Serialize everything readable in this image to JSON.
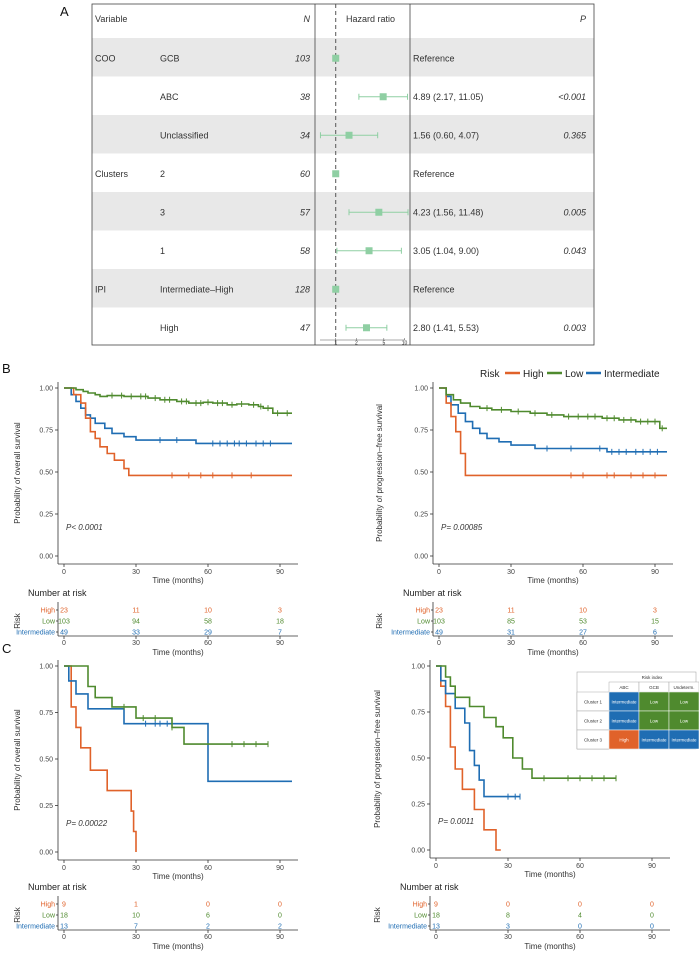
{
  "panel_labels": {
    "a": "A",
    "b": "B",
    "c": "C"
  },
  "colors": {
    "high": "#e0622a",
    "low": "#4f8a2e",
    "intermediate": "#1f6db3",
    "forest_marker": "#8fcfa3",
    "stripe": "#e8e8e8",
    "axis": "#333333"
  },
  "forest": {
    "headers": {
      "variable": "Variable",
      "n": "N",
      "hr": "Hazard ratio",
      "p": "P"
    },
    "x_ticks": [
      "1",
      "2",
      "5",
      "10"
    ]
  },
  "km": {
    "y_ticks": [
      "0.00",
      "0.25",
      "0.50",
      "0.75",
      "1.00"
    ],
    "x_ticks": [
      "0",
      "30",
      "60",
      "90"
    ],
    "xlabel": "Time (months)",
    "ylabel_os": "Probability of overall survival",
    "ylabel_pfs": "Probability of progression–free survival",
    "legend_title": "Risk",
    "legend_high": "High",
    "legend_low": "Low",
    "legend_intermediate": "Intermediate",
    "nar_title": "Number at risk",
    "nar_ylabel": "Risk",
    "group_high": "High",
    "group_low": "Low",
    "group_intermediate": "Intermediate"
  },
  "risk_table": {
    "title": "Risk index",
    "cols": [
      "ABC",
      "GCB",
      "Undeterm."
    ],
    "rows": [
      {
        "label": "Cluster 1",
        "cells": [
          "Intermediate",
          "Low",
          "Low"
        ]
      },
      {
        "label": "Cluster 2",
        "cells": [
          "Intermediate",
          "Low",
          "Low"
        ]
      },
      {
        "label": "Cluster 3",
        "cells": [
          "High",
          "Intermediate",
          "Intermediate"
        ]
      }
    ]
  },
  "chart_data": [
    {
      "type": "forest",
      "id": "A",
      "title": "",
      "x_scale": "log",
      "xlim": [
        0.5,
        12
      ],
      "reference_line": 1,
      "xlabel": "",
      "rows": [
        {
          "group": "COO",
          "variable": "GCB",
          "n": "103",
          "hr": 1,
          "lo": null,
          "hi": null,
          "hr_text": "Reference",
          "p": ""
        },
        {
          "group": "",
          "variable": "ABC",
          "n": "38",
          "hr": 4.89,
          "lo": 2.17,
          "hi": 11.05,
          "hr_text": "4.89 (2.17, 11.05)",
          "p": "<0.001"
        },
        {
          "group": "",
          "variable": "Unclassified",
          "n": "34",
          "hr": 1.56,
          "lo": 0.6,
          "hi": 4.07,
          "hr_text": "1.56 (0.60, 4.07)",
          "p": "0.365"
        },
        {
          "group": "Clusters",
          "variable": "2",
          "n": "60",
          "hr": 1,
          "lo": null,
          "hi": null,
          "hr_text": "Reference",
          "p": ""
        },
        {
          "group": "",
          "variable": "3",
          "n": "57",
          "hr": 4.23,
          "lo": 1.56,
          "hi": 11.48,
          "hr_text": "4.23 (1.56, 11.48)",
          "p": "0.005"
        },
        {
          "group": "",
          "variable": "1",
          "n": "58",
          "hr": 3.05,
          "lo": 1.04,
          "hi": 9.0,
          "hr_text": "3.05 (1.04, 9.00)",
          "p": "0.043"
        },
        {
          "group": "IPI",
          "variable": "Intermediate–High",
          "n": "128",
          "hr": 1,
          "lo": null,
          "hi": null,
          "hr_text": "Reference",
          "p": ""
        },
        {
          "group": "",
          "variable": "High",
          "n": "47",
          "hr": 2.8,
          "lo": 1.41,
          "hi": 5.53,
          "hr_text": "2.80 (1.41, 5.53)",
          "p": "0.003"
        }
      ]
    },
    {
      "type": "line",
      "id": "B-OS",
      "step": true,
      "xlim": [
        0,
        95
      ],
      "ylim": [
        0,
        1
      ],
      "pvalue_text": "P< 0.0001",
      "series": [
        {
          "name": "Intermediate",
          "color_key": "intermediate",
          "x": [
            0,
            3,
            5,
            7,
            9,
            11,
            13,
            17,
            20,
            25,
            30,
            35,
            45,
            55,
            60,
            65,
            75,
            85,
            95
          ],
          "y": [
            1,
            0.96,
            0.92,
            0.88,
            0.84,
            0.82,
            0.79,
            0.76,
            0.73,
            0.71,
            0.69,
            0.69,
            0.69,
            0.67,
            0.67,
            0.67,
            0.67,
            0.67,
            0.67
          ],
          "censor_x": [
            40,
            47,
            62,
            65,
            68,
            71,
            73,
            76,
            80,
            83,
            86
          ]
        },
        {
          "name": "High",
          "color_key": "high",
          "x": [
            0,
            4,
            7,
            9,
            11,
            13,
            15,
            18,
            21,
            25,
            27,
            95
          ],
          "y": [
            1,
            0.96,
            0.91,
            0.82,
            0.74,
            0.7,
            0.65,
            0.61,
            0.57,
            0.52,
            0.48,
            0.48
          ],
          "censor_x": [
            45,
            52,
            57,
            62,
            70,
            78
          ]
        },
        {
          "name": "Low",
          "color_key": "low",
          "x": [
            0,
            5,
            8,
            10,
            13,
            15,
            18,
            25,
            35,
            40,
            47,
            52,
            58,
            62,
            68,
            72,
            77,
            81,
            83,
            87,
            91,
            95
          ],
          "y": [
            1,
            0.99,
            0.98,
            0.97,
            0.96,
            0.95,
            0.955,
            0.95,
            0.94,
            0.93,
            0.92,
            0.91,
            0.915,
            0.91,
            0.9,
            0.905,
            0.9,
            0.89,
            0.88,
            0.85,
            0.85,
            0.85
          ],
          "censor_x": [
            20,
            24,
            28,
            32,
            34,
            38,
            42,
            44,
            49,
            51,
            55,
            57,
            60,
            64,
            66,
            70,
            74,
            79,
            82,
            85,
            89,
            93
          ]
        }
      ],
      "nar": {
        "x": [
          0,
          30,
          60,
          90
        ],
        "high": [
          "23",
          "11",
          "10",
          "3"
        ],
        "low": [
          "103",
          "94",
          "58",
          "18"
        ],
        "intermediate": [
          "49",
          "33",
          "29",
          "7"
        ]
      }
    },
    {
      "type": "line",
      "id": "B-PFS",
      "step": true,
      "xlim": [
        0,
        95
      ],
      "ylim": [
        0,
        1
      ],
      "pvalue_text": "P= 0.00085",
      "series": [
        {
          "name": "Intermediate",
          "color_key": "intermediate",
          "x": [
            0,
            3,
            5,
            8,
            11,
            14,
            17,
            20,
            25,
            30,
            35,
            40,
            50,
            60,
            70,
            95
          ],
          "y": [
            1,
            0.95,
            0.9,
            0.85,
            0.8,
            0.76,
            0.73,
            0.7,
            0.68,
            0.66,
            0.66,
            0.64,
            0.64,
            0.64,
            0.62,
            0.62
          ],
          "censor_x": [
            45,
            55,
            67,
            72,
            75,
            78,
            82,
            85,
            88,
            91
          ]
        },
        {
          "name": "High",
          "color_key": "high",
          "x": [
            0,
            3,
            5,
            7,
            9,
            11,
            95
          ],
          "y": [
            1,
            0.91,
            0.83,
            0.74,
            0.61,
            0.48,
            0.48
          ],
          "censor_x": [
            55,
            60,
            70,
            73,
            80,
            85,
            90
          ]
        },
        {
          "name": "Low",
          "color_key": "low",
          "x": [
            0,
            3,
            6,
            9,
            13,
            17,
            22,
            30,
            38,
            45,
            52,
            60,
            68,
            75,
            82,
            88,
            92,
            95
          ],
          "y": [
            1,
            0.96,
            0.93,
            0.91,
            0.89,
            0.88,
            0.87,
            0.86,
            0.85,
            0.84,
            0.83,
            0.83,
            0.82,
            0.81,
            0.8,
            0.8,
            0.76,
            0.76
          ],
          "censor_x": [
            20,
            26,
            33,
            40,
            47,
            54,
            58,
            62,
            65,
            70,
            73,
            77,
            80,
            84,
            87,
            90,
            93
          ]
        }
      ],
      "nar": {
        "x": [
          0,
          30,
          60,
          90
        ],
        "high": [
          "23",
          "11",
          "10",
          "3"
        ],
        "low": [
          "103",
          "85",
          "53",
          "15"
        ],
        "intermediate": [
          "49",
          "31",
          "27",
          "6"
        ]
      }
    },
    {
      "type": "line",
      "id": "C-OS",
      "step": true,
      "xlim": [
        0,
        95
      ],
      "ylim": [
        0,
        1
      ],
      "pvalue_text": "P= 0.00022",
      "series": [
        {
          "name": "High",
          "color_key": "high",
          "x": [
            0,
            3,
            5,
            7,
            11,
            18,
            26,
            28,
            29,
            30
          ],
          "y": [
            1,
            0.78,
            0.67,
            0.56,
            0.44,
            0.33,
            0.33,
            0.22,
            0.11,
            0
          ],
          "censor_x": []
        },
        {
          "name": "Intermediate",
          "color_key": "intermediate",
          "x": [
            0,
            2,
            5,
            10,
            14,
            25,
            60,
            95
          ],
          "y": [
            1,
            0.92,
            0.85,
            0.77,
            0.77,
            0.69,
            0.38,
            0.38
          ],
          "censor_x": [
            34,
            38,
            40,
            43
          ]
        },
        {
          "name": "Low",
          "color_key": "low",
          "x": [
            0,
            5,
            10,
            13,
            15,
            20,
            30,
            45,
            50,
            85
          ],
          "y": [
            1,
            1,
            0.89,
            0.83,
            0.83,
            0.78,
            0.72,
            0.67,
            0.58,
            0.58
          ],
          "censor_x": [
            25,
            33,
            38,
            45,
            70,
            75,
            80,
            85
          ]
        }
      ],
      "nar": {
        "x": [
          0,
          30,
          60,
          90
        ],
        "high": [
          "9",
          "1",
          "0",
          "0"
        ],
        "low": [
          "18",
          "10",
          "6",
          "0"
        ],
        "intermediate": [
          "13",
          "7",
          "2",
          "2"
        ]
      }
    },
    {
      "type": "line",
      "id": "C-PFS",
      "step": true,
      "xlim": [
        0,
        95
      ],
      "ylim": [
        0,
        1
      ],
      "pvalue_text": "P= 0.0011",
      "series": [
        {
          "name": "High",
          "color_key": "high",
          "x": [
            0,
            2,
            4,
            6,
            8,
            11,
            16,
            20,
            25,
            27
          ],
          "y": [
            1,
            0.89,
            0.78,
            0.56,
            0.44,
            0.33,
            0.22,
            0.11,
            0,
            0
          ],
          "censor_x": []
        },
        {
          "name": "Intermediate",
          "color_key": "intermediate",
          "x": [
            0,
            2,
            4,
            8,
            12,
            14,
            16,
            18,
            20,
            35
          ],
          "y": [
            1,
            0.92,
            0.85,
            0.77,
            0.69,
            0.54,
            0.46,
            0.38,
            0.29,
            0.29
          ],
          "censor_x": [
            30,
            33,
            35
          ]
        },
        {
          "name": "Low",
          "color_key": "low",
          "x": [
            0,
            4,
            6,
            8,
            14,
            20,
            25,
            28,
            32,
            36,
            40,
            75
          ],
          "y": [
            1,
            0.94,
            0.89,
            0.83,
            0.78,
            0.72,
            0.67,
            0.61,
            0.5,
            0.44,
            0.39,
            0.39
          ],
          "censor_x": [
            45,
            55,
            60,
            65,
            70,
            75
          ]
        }
      ],
      "nar": {
        "x": [
          0,
          30,
          60,
          90
        ],
        "high": [
          "9",
          "0",
          "0",
          "0"
        ],
        "low": [
          "18",
          "8",
          "4",
          "0"
        ],
        "intermediate": [
          "13",
          "3",
          "0",
          "0"
        ]
      }
    }
  ]
}
